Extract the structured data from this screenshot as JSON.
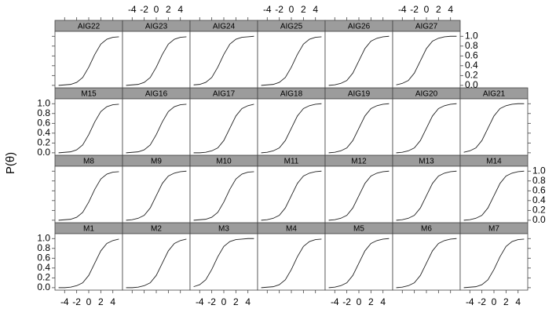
{
  "chart_data": {
    "type": "line",
    "ylabel": "P(θ)",
    "x": [
      -5,
      -4,
      -3,
      -2,
      -1,
      0,
      1,
      2,
      3,
      4,
      5
    ],
    "xlim": [
      -5.6,
      5.6
    ],
    "xticks": [
      -4,
      -2,
      0,
      2,
      4
    ],
    "ylim": [
      -0.05,
      1.1
    ],
    "yticks": [
      {
        "value": 0,
        "label": "0.0"
      },
      0.2,
      0.4,
      0.6,
      0.8,
      {
        "value": 1,
        "label": "1.0"
      }
    ],
    "color": "#222222",
    "panels": [
      {
        "title": "M1",
        "values": [
          0.0,
          0.0,
          0.01,
          0.04,
          0.1,
          0.25,
          0.5,
          0.75,
          0.9,
          0.96,
          0.99
        ]
      },
      {
        "title": "M2",
        "values": [
          0.0,
          0.0,
          0.01,
          0.04,
          0.1,
          0.25,
          0.5,
          0.75,
          0.9,
          0.96,
          0.99
        ]
      },
      {
        "title": "M3",
        "values": [
          0.02,
          0.06,
          0.16,
          0.37,
          0.63,
          0.84,
          0.94,
          0.98,
          0.99,
          1.0,
          1.0
        ]
      },
      {
        "title": "M4",
        "values": [
          0.0,
          0.01,
          0.02,
          0.06,
          0.16,
          0.37,
          0.63,
          0.84,
          0.94,
          0.98,
          0.99
        ]
      },
      {
        "title": "M5",
        "values": [
          0.0,
          0.01,
          0.04,
          0.1,
          0.25,
          0.5,
          0.75,
          0.9,
          0.96,
          0.99,
          1.0
        ]
      },
      {
        "title": "M6",
        "values": [
          0.0,
          0.01,
          0.04,
          0.1,
          0.25,
          0.5,
          0.75,
          0.9,
          0.96,
          0.99,
          1.0
        ]
      },
      {
        "title": "M7",
        "values": [
          0.0,
          0.01,
          0.02,
          0.06,
          0.16,
          0.37,
          0.63,
          0.84,
          0.94,
          0.98,
          0.99
        ]
      },
      {
        "title": "M8",
        "values": [
          0.0,
          0.01,
          0.02,
          0.06,
          0.16,
          0.37,
          0.63,
          0.84,
          0.94,
          0.98,
          0.99
        ]
      },
      {
        "title": "M9",
        "values": [
          0.0,
          0.01,
          0.04,
          0.1,
          0.25,
          0.5,
          0.75,
          0.9,
          0.96,
          0.99,
          1.0
        ]
      },
      {
        "title": "M10",
        "values": [
          0.0,
          0.01,
          0.02,
          0.06,
          0.16,
          0.37,
          0.63,
          0.84,
          0.94,
          0.98,
          0.99
        ]
      },
      {
        "title": "M11",
        "values": [
          0.0,
          0.01,
          0.04,
          0.1,
          0.25,
          0.5,
          0.75,
          0.9,
          0.96,
          0.99,
          1.0
        ]
      },
      {
        "title": "M12",
        "values": [
          0.0,
          0.01,
          0.04,
          0.1,
          0.25,
          0.5,
          0.75,
          0.9,
          0.96,
          0.99,
          1.0
        ]
      },
      {
        "title": "M13",
        "values": [
          0.0,
          0.01,
          0.04,
          0.1,
          0.25,
          0.5,
          0.75,
          0.9,
          0.96,
          0.99,
          1.0
        ]
      },
      {
        "title": "M14",
        "values": [
          0.0,
          0.01,
          0.04,
          0.1,
          0.25,
          0.5,
          0.75,
          0.9,
          0.96,
          0.99,
          1.0
        ]
      },
      {
        "title": "M15",
        "values": [
          0.0,
          0.01,
          0.02,
          0.06,
          0.16,
          0.37,
          0.63,
          0.84,
          0.94,
          0.98,
          0.99
        ]
      },
      {
        "title": "AIG16",
        "values": [
          0.0,
          0.01,
          0.02,
          0.06,
          0.16,
          0.37,
          0.63,
          0.84,
          0.94,
          0.98,
          0.99
        ]
      },
      {
        "title": "AIG17",
        "values": [
          0.0,
          0.0,
          0.01,
          0.04,
          0.1,
          0.25,
          0.5,
          0.75,
          0.9,
          0.96,
          0.99
        ]
      },
      {
        "title": "AIG18",
        "values": [
          0.0,
          0.01,
          0.04,
          0.1,
          0.25,
          0.5,
          0.75,
          0.9,
          0.96,
          0.99,
          1.0
        ]
      },
      {
        "title": "AIG19",
        "values": [
          0.0,
          0.01,
          0.04,
          0.1,
          0.25,
          0.5,
          0.75,
          0.9,
          0.96,
          0.99,
          1.0
        ]
      },
      {
        "title": "AIG20",
        "values": [
          0.0,
          0.01,
          0.04,
          0.1,
          0.25,
          0.5,
          0.75,
          0.9,
          0.96,
          0.99,
          1.0
        ]
      },
      {
        "title": "AIG21",
        "values": [
          0.01,
          0.04,
          0.1,
          0.25,
          0.5,
          0.75,
          0.9,
          0.96,
          0.99,
          1.0,
          1.0
        ]
      },
      {
        "title": "AIG22",
        "values": [
          0.0,
          0.01,
          0.02,
          0.06,
          0.16,
          0.37,
          0.63,
          0.84,
          0.94,
          0.98,
          0.99
        ]
      },
      {
        "title": "AIG23",
        "values": [
          0.0,
          0.01,
          0.02,
          0.06,
          0.16,
          0.37,
          0.63,
          0.84,
          0.94,
          0.98,
          0.99
        ]
      },
      {
        "title": "AIG24",
        "values": [
          0.01,
          0.02,
          0.06,
          0.16,
          0.37,
          0.63,
          0.84,
          0.94,
          0.98,
          0.99,
          1.0
        ]
      },
      {
        "title": "AIG25",
        "values": [
          0.0,
          0.01,
          0.02,
          0.06,
          0.16,
          0.37,
          0.63,
          0.84,
          0.94,
          0.98,
          0.99
        ]
      },
      {
        "title": "AIG26",
        "values": [
          0.0,
          0.01,
          0.04,
          0.1,
          0.25,
          0.5,
          0.75,
          0.9,
          0.96,
          0.99,
          1.0
        ]
      },
      {
        "title": "AIG27",
        "values": [
          0.01,
          0.04,
          0.1,
          0.25,
          0.5,
          0.75,
          0.9,
          0.96,
          0.99,
          1.0,
          1.0
        ]
      }
    ]
  }
}
